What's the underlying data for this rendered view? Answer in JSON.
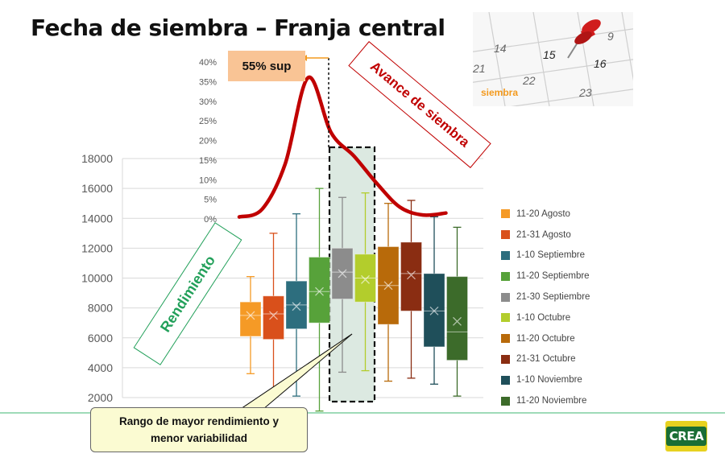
{
  "title": "Fecha de siembra – Franja central",
  "colors": {
    "curve": "#c00000",
    "axis_text": "#595959",
    "grid": "#d9d9d9",
    "highlight_fill": "#dce9e1",
    "bottom_line": "#7fcfa0",
    "series": [
      "#f59a26",
      "#d9501b",
      "#2d6e7e",
      "#57a23a",
      "#8c8c8c",
      "#b3cd2c",
      "#b86a0a",
      "#8a2d12",
      "#1f4f5a",
      "#3c6b2a"
    ]
  },
  "annotations": {
    "sup_callout": "55% sup",
    "avance": "Avance de siembra",
    "rendimiento": "Rendimiento",
    "rango_line1": "Rango de mayor rendimiento y",
    "rango_line2": "menor variabilidad",
    "calendar_word": "siembra",
    "calendar_numbers": [
      "14",
      "15",
      "16",
      "21",
      "22",
      "23",
      "9"
    ]
  },
  "logo_text": "CREA",
  "chart_data": [
    {
      "type": "box",
      "ylim": [
        2000,
        18000
      ],
      "yticks": [
        "2000",
        "4000",
        "6000",
        "8000",
        "10000",
        "12000",
        "14000",
        "16000",
        "18000"
      ],
      "grid": true,
      "legend_position": "right",
      "series": [
        {
          "name": "11-20 Agosto",
          "min": 3600,
          "q1": 6100,
          "median": 7500,
          "mean": 7500,
          "q3": 8400,
          "max": 10100
        },
        {
          "name": "21-31 Agosto",
          "min": 2200,
          "q1": 5900,
          "median": 7600,
          "mean": 7500,
          "q3": 8800,
          "max": 13000
        },
        {
          "name": "1-10 Septiembre",
          "min": 2100,
          "q1": 6600,
          "median": 8200,
          "mean": 8100,
          "q3": 9800,
          "max": 14300
        },
        {
          "name": "11-20 Septiembre",
          "min": 1100,
          "q1": 7000,
          "median": 9100,
          "mean": 9100,
          "q3": 11400,
          "max": 16000
        },
        {
          "name": "21-30 Septiembre",
          "min": 3700,
          "q1": 8600,
          "median": 10400,
          "mean": 10300,
          "q3": 12000,
          "max": 15400
        },
        {
          "name": "1-10 Octubre",
          "min": 3800,
          "q1": 8400,
          "median": 10000,
          "mean": 9900,
          "q3": 11600,
          "max": 15700
        },
        {
          "name": "11-20 Octubre",
          "min": 3100,
          "q1": 6900,
          "median": 9500,
          "mean": 9500,
          "q3": 12100,
          "max": 15000
        },
        {
          "name": "21-31 Octubre",
          "min": 3300,
          "q1": 7800,
          "median": 10300,
          "mean": 10200,
          "q3": 12400,
          "max": 15200
        },
        {
          "name": "1-10 Noviembre",
          "min": 2900,
          "q1": 5400,
          "median": 7800,
          "mean": 7800,
          "q3": 10300,
          "max": 14100
        },
        {
          "name": "11-20 Noviembre",
          "min": 2100,
          "q1": 4500,
          "median": 6400,
          "mean": 7100,
          "q3": 10100,
          "max": 13400
        }
      ]
    },
    {
      "type": "line",
      "series_name": "Avance de siembra",
      "ylim": [
        0,
        40
      ],
      "yticks": [
        "0%",
        "5%",
        "10%",
        "15%",
        "20%",
        "25%",
        "30%",
        "35%",
        "40%"
      ],
      "x": [
        "11-20 Agosto",
        "21-31 Agosto",
        "1-10 Septiembre",
        "11-20 Septiembre",
        "21-30 Septiembre",
        "1-10 Octubre",
        "11-20 Octubre",
        "21-31 Octubre",
        "1-10 Noviembre",
        "11-20 Noviembre"
      ],
      "values": [
        0.5,
        2.5,
        14,
        36,
        22,
        16,
        9,
        3,
        1,
        1.5
      ]
    }
  ]
}
